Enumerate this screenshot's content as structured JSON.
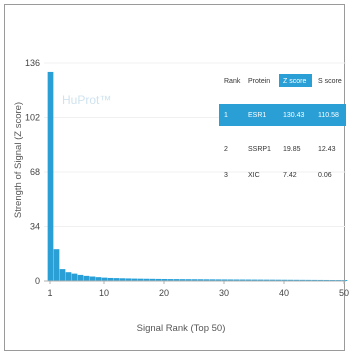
{
  "chart_data": {
    "type": "bar",
    "xlabel": "Signal Rank (Top 50)",
    "ylabel": "Strength of Signal (Z score)",
    "watermark": "HuProt™",
    "xlim": [
      1,
      50
    ],
    "ylim": [
      0,
      136
    ],
    "xticks": [
      "1",
      "10",
      "20",
      "30",
      "40",
      "50"
    ],
    "yticks": [
      "0",
      "34",
      "68",
      "102",
      "136"
    ],
    "bar_color": "#2a9fd6",
    "x": [
      1,
      2,
      3,
      4,
      5,
      6,
      7,
      8,
      9,
      10,
      11,
      12,
      13,
      14,
      15,
      16,
      17,
      18,
      19,
      20,
      21,
      22,
      23,
      24,
      25,
      26,
      27,
      28,
      29,
      30,
      31,
      32,
      33,
      34,
      35,
      36,
      37,
      38,
      39,
      40,
      41,
      42,
      43,
      44,
      45,
      46,
      47,
      48,
      49,
      50
    ],
    "values": [
      130.43,
      19.85,
      7.42,
      5.5,
      4.6,
      3.8,
      3.2,
      2.8,
      2.4,
      2.1,
      1.9,
      1.8,
      1.7,
      1.6,
      1.5,
      1.45,
      1.4,
      1.35,
      1.3,
      1.25,
      1.2,
      1.18,
      1.15,
      1.12,
      1.1,
      1.08,
      1.05,
      1.03,
      1.0,
      0.98,
      0.96,
      0.94,
      0.92,
      0.9,
      0.88,
      0.86,
      0.84,
      0.82,
      0.8,
      0.78,
      0.76,
      0.74,
      0.72,
      0.7,
      0.68,
      0.66,
      0.64,
      0.62,
      0.6,
      0.58
    ],
    "table": {
      "headers": [
        "Rank",
        "Protein",
        "Z score",
        "S score"
      ],
      "highlight_color": "#2a9fd6",
      "rows": [
        [
          "1",
          "ESR1",
          "130.43",
          "110.58"
        ],
        [
          "2",
          "SSRP1",
          "19.85",
          "12.43"
        ],
        [
          "3",
          "XIC",
          "7.42",
          "0.06"
        ]
      ]
    }
  }
}
